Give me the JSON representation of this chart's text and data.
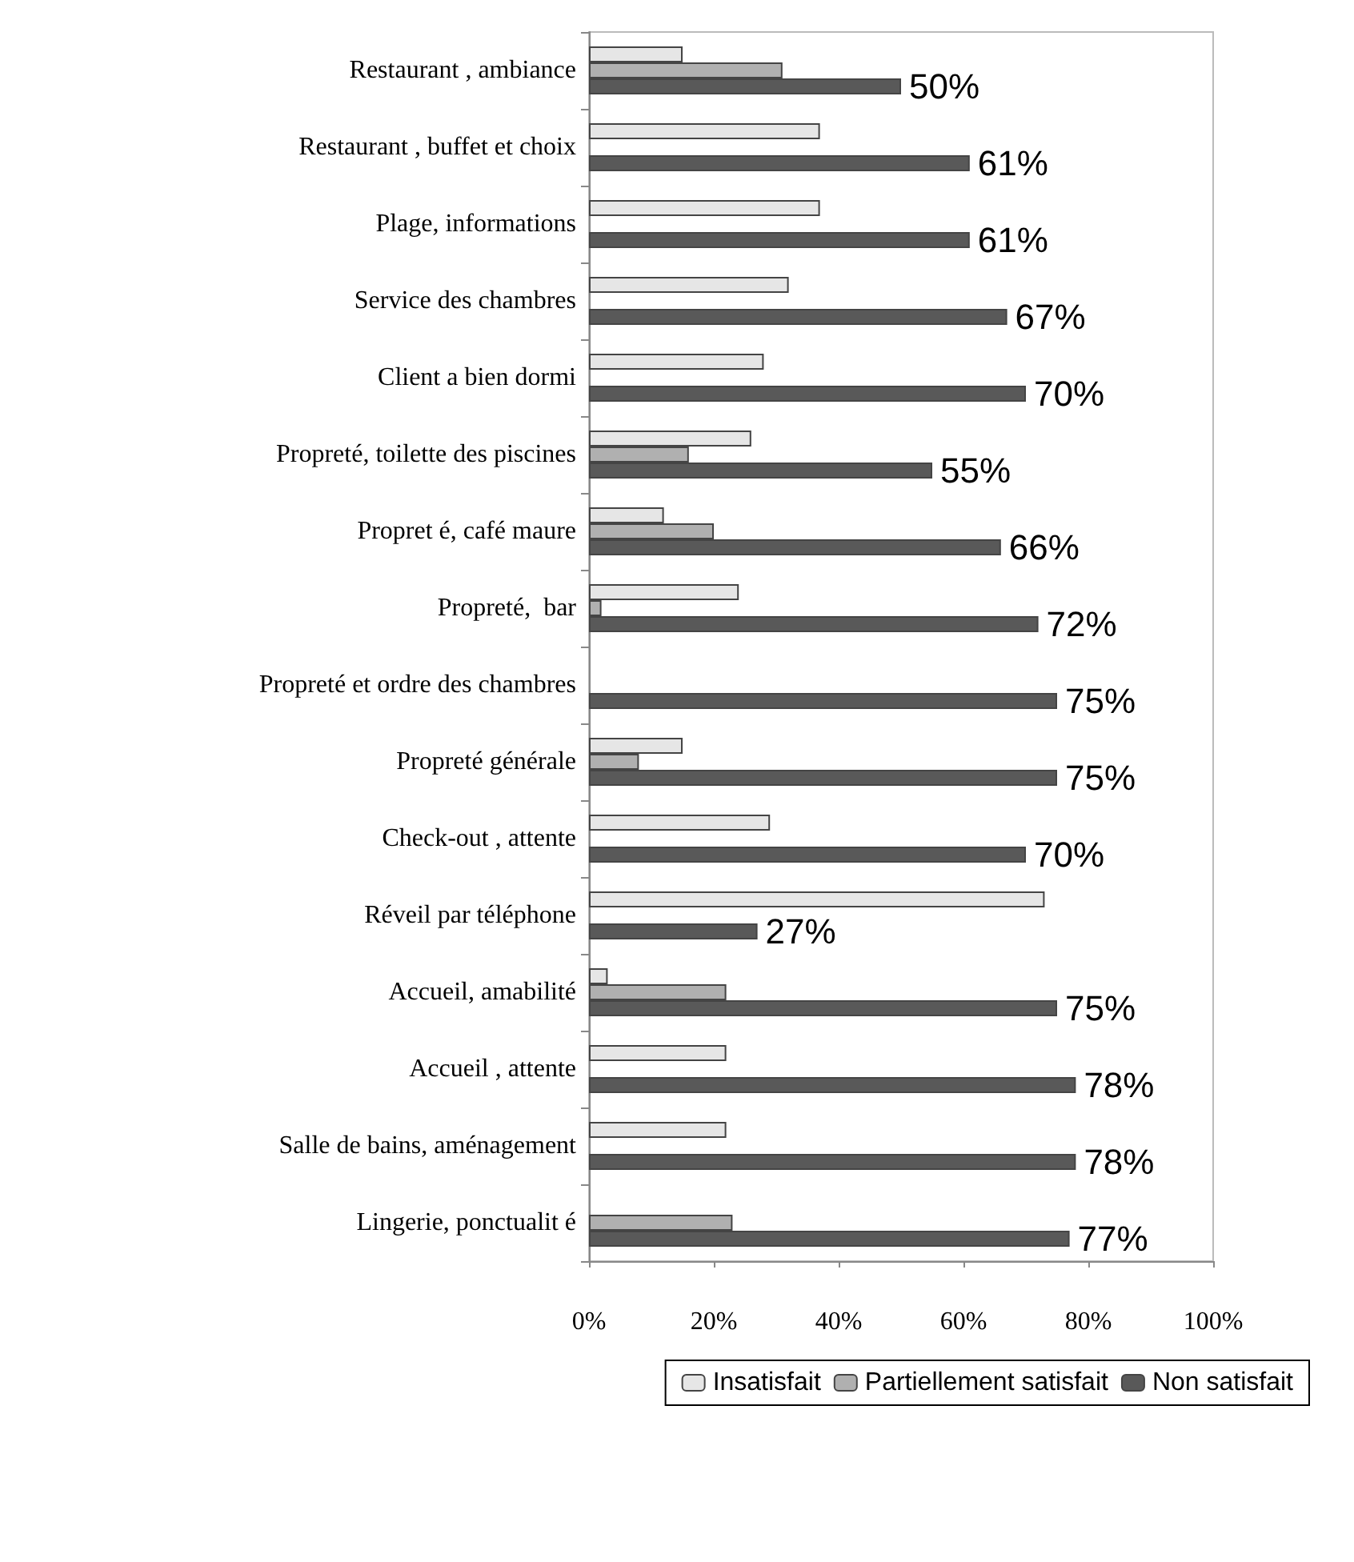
{
  "chart_data": {
    "type": "bar",
    "orientation": "horizontal",
    "categories": [
      "Restaurant , ambiance",
      "Restaurant , buffet et choix",
      "Plage, informations",
      "Service des chambres",
      "Client a bien dormi",
      "Propreté, toilette des piscines",
      "Propret é, café maure",
      "Propreté,  bar",
      "Propreté et ordre des chambres",
      "Propreté générale",
      "Check-out , attente",
      "Réveil par téléphone",
      "Accueil, amabilité",
      "Accueil , attente",
      "Salle de bains, aménagement",
      "Lingerie, ponctualit é"
    ],
    "series": [
      {
        "name": "Insatisfait",
        "color": "#e6e6e6",
        "values": [
          15,
          37,
          37,
          32,
          28,
          26,
          12,
          24,
          null,
          15,
          29,
          73,
          3,
          22,
          22,
          null
        ]
      },
      {
        "name": "Partiellement satisfait",
        "color": "#b0b0b0",
        "values": [
          31,
          null,
          null,
          null,
          null,
          16,
          20,
          2,
          null,
          8,
          null,
          null,
          22,
          null,
          null,
          23
        ]
      },
      {
        "name": "Non satisfait",
        "color": "#595959",
        "values": [
          50,
          61,
          61,
          67,
          70,
          55,
          66,
          72,
          75,
          75,
          70,
          27,
          75,
          78,
          78,
          77
        ],
        "value_labels": [
          "50%",
          "61%",
          "61%",
          "67%",
          "70%",
          "55%",
          "66%",
          "72%",
          "75%",
          "75%",
          "70%",
          "27%",
          "75%",
          "78%",
          "78%",
          "77%"
        ]
      }
    ],
    "xlim": [
      0,
      100
    ],
    "xticks": [
      {
        "value": 0,
        "label": "0%"
      },
      {
        "value": 20,
        "label": "20%"
      },
      {
        "value": 40,
        "label": "40%"
      },
      {
        "value": 60,
        "label": "60%"
      },
      {
        "value": 80,
        "label": "80%"
      },
      {
        "value": 100,
        "label": "100%"
      }
    ],
    "grid": false,
    "legend": "bottom"
  }
}
